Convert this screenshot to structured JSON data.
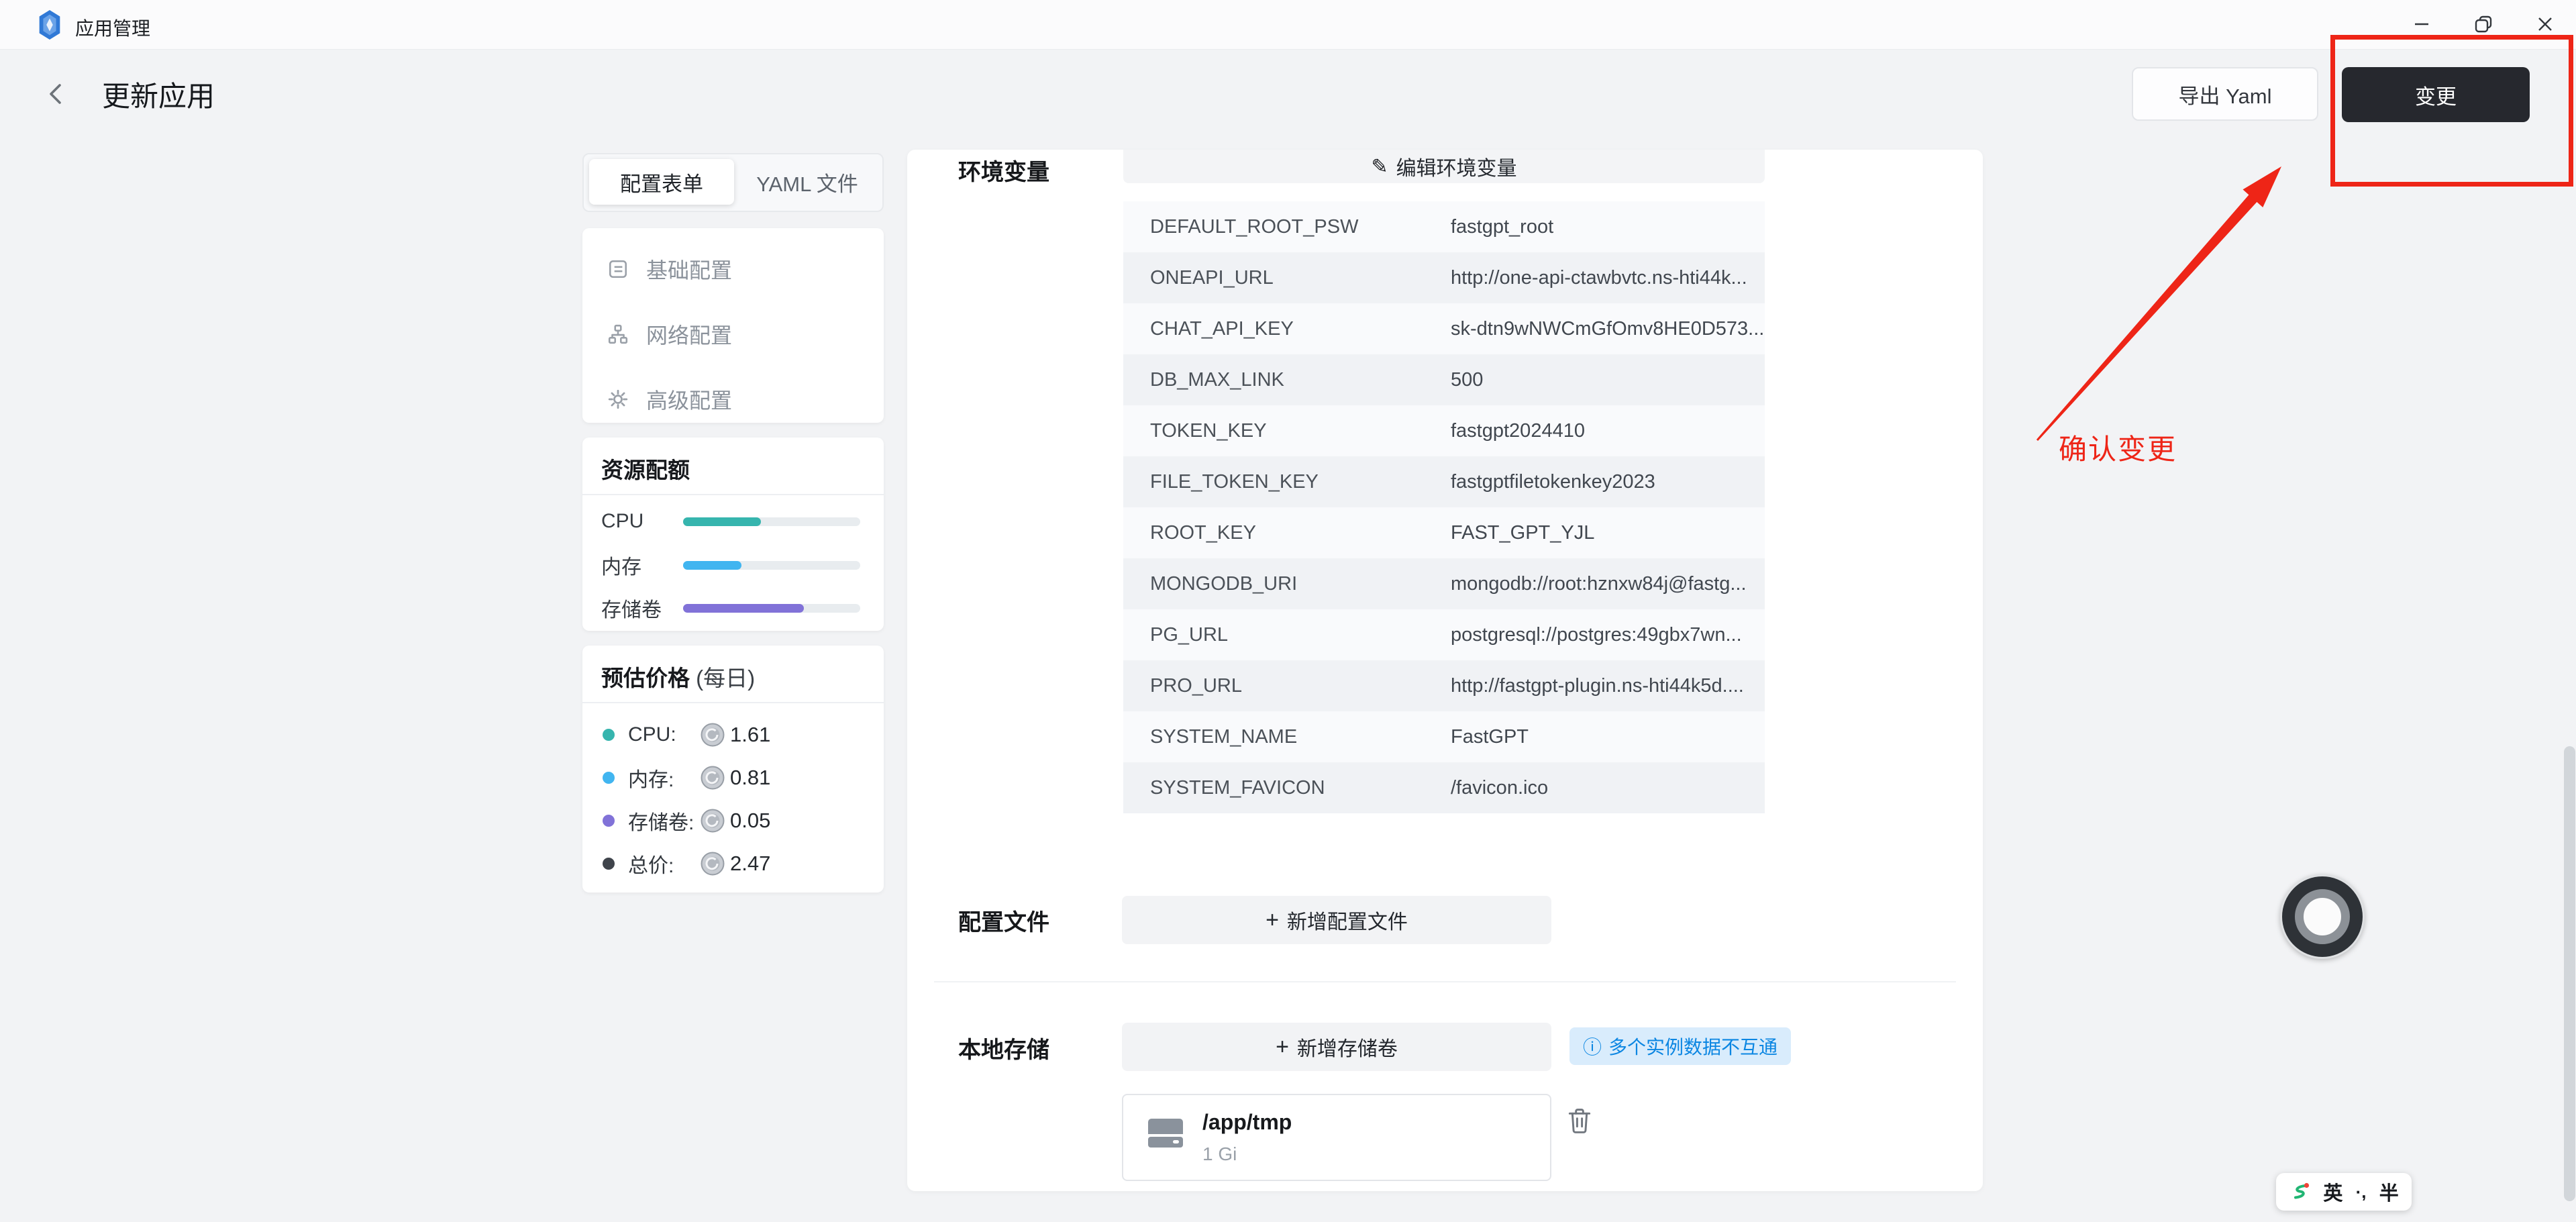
{
  "window": {
    "title": "应用管理"
  },
  "header": {
    "title": "更新应用",
    "export_label": "导出 Yaml",
    "apply_label": "变更"
  },
  "annotation": {
    "text": "确认变更",
    "color": "#ee2517"
  },
  "sidebar": {
    "tabs": [
      {
        "label": "配置表单",
        "active": true
      },
      {
        "label": "YAML 文件",
        "active": false
      }
    ],
    "nav": [
      {
        "label": "基础配置"
      },
      {
        "label": "网络配置"
      },
      {
        "label": "高级配置"
      }
    ],
    "quota": {
      "title": "资源配额",
      "rows": [
        {
          "label": "CPU",
          "width": "44%",
          "color": "#36b5ae"
        },
        {
          "label": "内存",
          "width": "33%",
          "color": "#41b5f0"
        },
        {
          "label": "存储卷",
          "width": "68%",
          "color": "#8172d8"
        }
      ]
    },
    "price": {
      "title": "预估价格",
      "subtitle": "(每日)",
      "rows": [
        {
          "label": "CPU:",
          "value": "1.61",
          "dot": "#36b5ae"
        },
        {
          "label": "内存:",
          "value": "0.81",
          "dot": "#41b5f0"
        },
        {
          "label": "存储卷:",
          "value": "0.05",
          "dot": "#8172d8"
        },
        {
          "label": "总价:",
          "value": "2.47",
          "dot": "#3f444b"
        }
      ]
    }
  },
  "main": {
    "env": {
      "label": "环境变量",
      "edit_icon": "✎",
      "edit_label": "编辑环境变量",
      "rows": [
        {
          "key": "DEFAULT_ROOT_PSW",
          "value": "fastgpt_root"
        },
        {
          "key": "ONEAPI_URL",
          "value": "http://one-api-ctawbvtc.ns-hti44k..."
        },
        {
          "key": "CHAT_API_KEY",
          "value": "sk-dtn9wNWCmGfOmv8HE0D573..."
        },
        {
          "key": "DB_MAX_LINK",
          "value": "500"
        },
        {
          "key": "TOKEN_KEY",
          "value": "fastgpt2024410"
        },
        {
          "key": "FILE_TOKEN_KEY",
          "value": "fastgptfiletokenkey2023"
        },
        {
          "key": "ROOT_KEY",
          "value": "FAST_GPT_YJL"
        },
        {
          "key": "MONGODB_URI",
          "value": "mongodb://root:hznxw84j@fastg..."
        },
        {
          "key": "PG_URL",
          "value": "postgresql://postgres:49gbx7wn..."
        },
        {
          "key": "PRO_URL",
          "value": "http://fastgpt-plugin.ns-hti44k5d...."
        },
        {
          "key": "SYSTEM_NAME",
          "value": "FastGPT"
        },
        {
          "key": "SYSTEM_FAVICON",
          "value": "/favicon.ico"
        }
      ]
    },
    "config_file": {
      "label": "配置文件",
      "plus": "+",
      "add_label": "新增配置文件"
    },
    "storage": {
      "label": "本地存储",
      "plus": "+",
      "add_label": "新增存储卷",
      "badge_icon": "ⓘ",
      "badge": "多个实例数据不互通",
      "volume": {
        "path": "/app/tmp",
        "size": "1 Gi"
      }
    }
  },
  "ime": {
    "lang": "英",
    "punct": "·,",
    "shape": "半"
  },
  "colors": {
    "accent_red": "#ee2517",
    "apply_button_bg": "#26282e",
    "badge_text": "#0b86e2",
    "cpu": "#36b5ae",
    "memory": "#41b5f0",
    "storage": "#8172d8",
    "total": "#3f444b"
  }
}
